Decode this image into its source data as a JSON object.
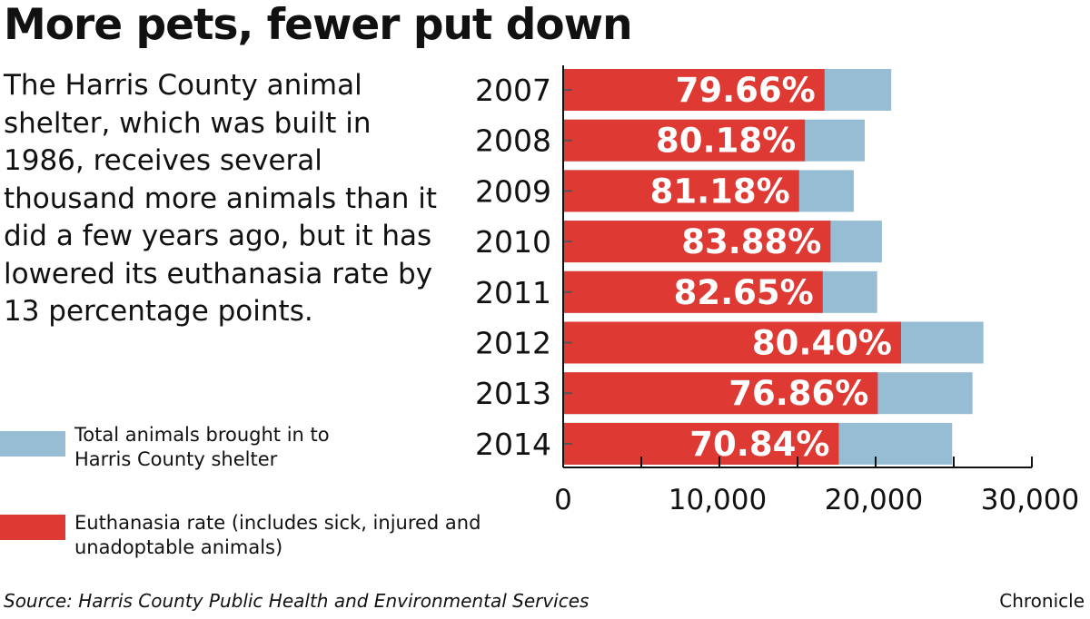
{
  "title": "More pets, fewer put down",
  "description": "The Harris County animal shelter, which was built in 1986, receives several thousand more animals than it did a few years ago, but it has lowered its euthanasia rate by 13 percentage points.",
  "legend": {
    "total": "Total animals brought in to Harris County shelter",
    "rate": "Euthanasia rate (includes sick, injured and unadoptable animals)"
  },
  "source": "Source: Harris County Public Health and Environmental Services",
  "credit": "Chronicle",
  "colors": {
    "total": "#96bdd3",
    "rate": "#de3a33"
  },
  "chart_data": {
    "type": "bar",
    "orientation": "horizontal",
    "stacked_overlay": true,
    "categories": [
      "2007",
      "2008",
      "2009",
      "2010",
      "2011",
      "2012",
      "2013",
      "2014"
    ],
    "series": [
      {
        "name": "Total animals brought in to Harris County shelter",
        "values": [
          21000,
          19300,
          18600,
          20400,
          20100,
          26900,
          26200,
          24900
        ]
      },
      {
        "name": "Euthanasia rate (includes sick, injured and unadoptable animals)",
        "values": [
          79.66,
          80.18,
          81.18,
          83.88,
          82.65,
          80.4,
          76.86,
          70.84
        ],
        "unit": "%"
      }
    ],
    "data_labels": [
      "79.66%",
      "80.18%",
      "81.18%",
      "83.88%",
      "82.65%",
      "80.40%",
      "76.86%",
      "70.84%"
    ],
    "xlim": [
      0,
      30000
    ],
    "xticks": [
      0,
      10000,
      20000,
      30000
    ],
    "xtick_labels": [
      "0",
      "10,000",
      "20,000",
      "30,000"
    ],
    "minor_tick_step": 5000,
    "grid": false,
    "legend_position": "left"
  }
}
